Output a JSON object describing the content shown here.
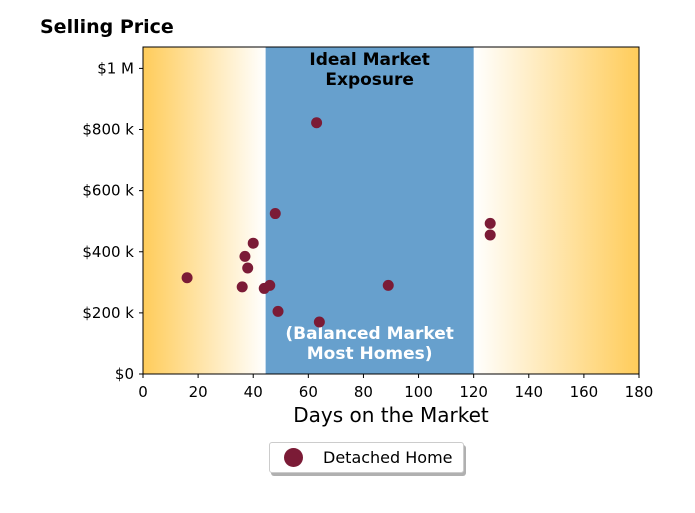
{
  "chart_data": {
    "type": "scatter",
    "title": "Selling Price",
    "xlabel": "Days on the Market",
    "ylabel": "",
    "xlim": [
      0,
      180
    ],
    "ylim": [
      0,
      1070000
    ],
    "x_ticks": [
      0,
      20,
      40,
      60,
      80,
      100,
      120,
      140,
      160,
      180
    ],
    "y_ticks": [
      0,
      200000,
      400000,
      600000,
      800000,
      1000000
    ],
    "y_tick_labels": [
      "$0",
      "$200 k",
      "$400 k",
      "$600 k",
      "$800 k",
      "$1 M"
    ],
    "grid": false,
    "legend_position": "bottom-center",
    "bands": {
      "ideal_range": [
        44.5,
        120
      ],
      "ideal_color": "#67a0cd",
      "gradient_color": "#ffcc5a",
      "top_label_line1": "Ideal Market",
      "top_label_line2": "Exposure",
      "bottom_label_line1": "(Balanced Market",
      "bottom_label_line2": "Most Homes)"
    },
    "series": [
      {
        "name": "Detached Home",
        "color": "#7b1b36",
        "points": [
          {
            "x": 16,
            "y": 315000
          },
          {
            "x": 36,
            "y": 285000
          },
          {
            "x": 37,
            "y": 385000
          },
          {
            "x": 38,
            "y": 347000
          },
          {
            "x": 40,
            "y": 428000
          },
          {
            "x": 44,
            "y": 280000
          },
          {
            "x": 46,
            "y": 290000
          },
          {
            "x": 48,
            "y": 525000
          },
          {
            "x": 49,
            "y": 205000
          },
          {
            "x": 63,
            "y": 822000
          },
          {
            "x": 64,
            "y": 170000
          },
          {
            "x": 89,
            "y": 290000
          },
          {
            "x": 126,
            "y": 493000
          },
          {
            "x": 126,
            "y": 455000
          }
        ]
      }
    ]
  }
}
